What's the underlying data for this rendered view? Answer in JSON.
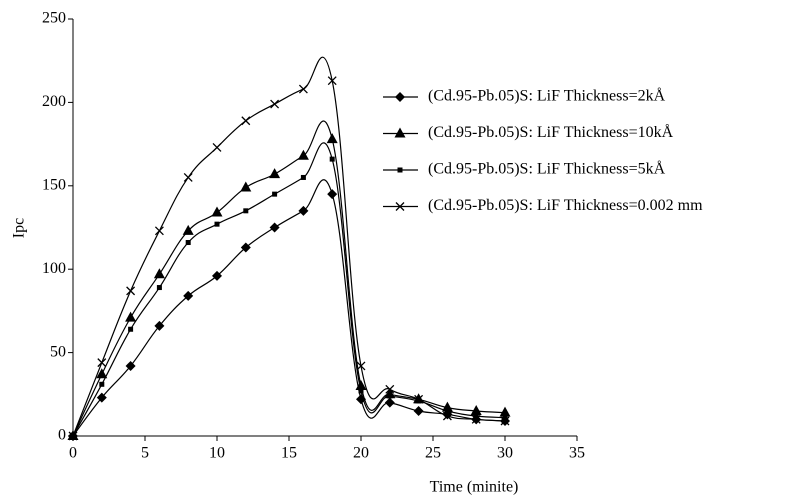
{
  "chart_data": {
    "type": "line",
    "x_label": "Time (minite)",
    "y_label": "Ipc",
    "x": [
      0,
      2,
      4,
      6,
      8,
      10,
      12,
      14,
      16,
      18,
      20,
      22,
      24,
      26,
      28,
      30
    ],
    "series": [
      {
        "name": "(Cd.95-Pb.05)S: LiF Thickness=2kÅ",
        "color": "#000000",
        "marker": "diamond",
        "values": [
          0,
          23,
          42,
          66,
          84,
          96,
          113,
          125,
          135,
          145,
          22,
          20,
          15,
          13,
          10,
          9
        ]
      },
      {
        "name": "(Cd.95-Pb.05)S: LiF Thickness=10kÅ",
        "color": "#000000",
        "marker": "triangle",
        "values": [
          0,
          37,
          71,
          97,
          123,
          134,
          149,
          157,
          168,
          178,
          30,
          25,
          22,
          17,
          15,
          14
        ]
      },
      {
        "name": "(Cd.95-Pb.05)S: LiF Thickness=5kÅ",
        "color": "#000000",
        "marker": "square",
        "values": [
          0,
          31,
          64,
          89,
          116,
          127,
          135,
          145,
          155,
          166,
          27,
          24,
          21,
          15,
          12,
          11
        ]
      },
      {
        "name": "(Cd.95-Pb.05)S: LiF Thickness=0.002 mm",
        "color": "#000000",
        "marker": "x",
        "values": [
          0,
          44,
          87,
          123,
          155,
          173,
          189,
          199,
          208,
          213,
          42,
          28,
          22,
          12,
          10,
          9
        ]
      }
    ],
    "xlim": [
      0,
      35
    ],
    "xticks": [
      0,
      5,
      10,
      15,
      20,
      25,
      30,
      35
    ],
    "ylim": [
      0,
      250
    ],
    "yticks": [
      0,
      50,
      100,
      150,
      200,
      250
    ],
    "grid": false,
    "legend": "right"
  }
}
